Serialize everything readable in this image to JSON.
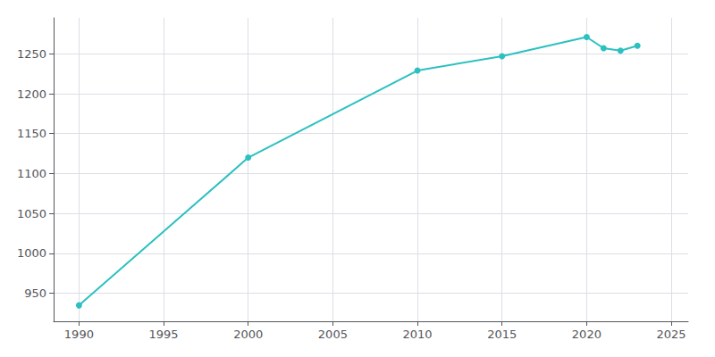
{
  "chart_data": {
    "type": "line",
    "x": [
      1990,
      2000,
      2010,
      2015,
      2020,
      2021,
      2022,
      2023
    ],
    "values": [
      935,
      1120,
      1229,
      1247,
      1271,
      1257,
      1254,
      1260
    ],
    "color": "#2dc0c0",
    "marker": "circle",
    "xlim": [
      1988.5,
      2026
    ],
    "xticks": [
      1990,
      1995,
      2000,
      2005,
      2010,
      2015,
      2020,
      2025
    ],
    "ylim": [
      915,
      1295
    ],
    "yticks": [
      950,
      1000,
      1050,
      1100,
      1150,
      1200,
      1250
    ],
    "grid": true
  }
}
